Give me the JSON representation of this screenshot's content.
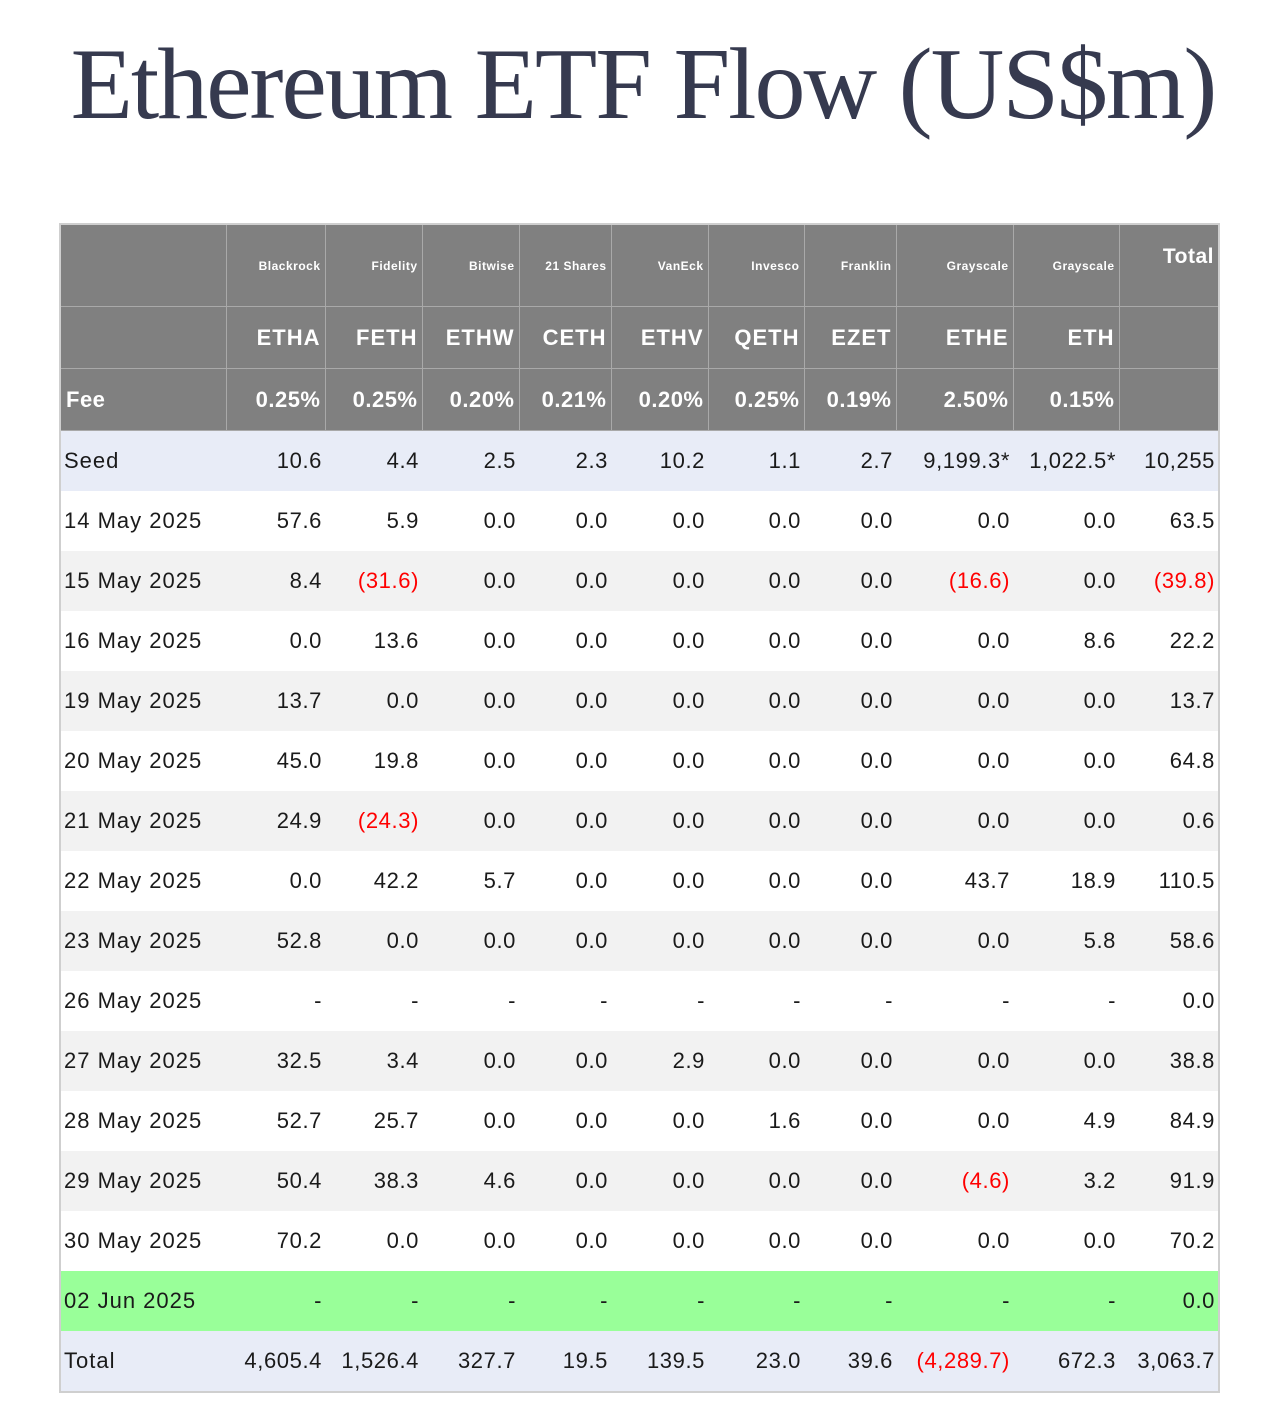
{
  "title": "Ethereum ETF Flow (US$m)",
  "colors": {
    "title": "#363a4f",
    "header_bg": "#808080",
    "seed_total_bg": "#e8ecf7",
    "stripe_bg": "#f2f2f2",
    "highlight_bg": "#99ff99",
    "negative_text": "#ff0000"
  },
  "header": {
    "providers": [
      "",
      "Blackrock",
      "Fidelity",
      "Bitwise",
      "21 Shares",
      "VanEck",
      "Invesco",
      "Franklin",
      "Grayscale",
      "Grayscale",
      "Total"
    ],
    "tickers": [
      "",
      "ETHA",
      "FETH",
      "ETHW",
      "CETH",
      "ETHV",
      "QETH",
      "EZET",
      "ETHE",
      "ETH",
      ""
    ],
    "fees": [
      "Fee",
      "0.25%",
      "0.25%",
      "0.20%",
      "0.21%",
      "0.20%",
      "0.25%",
      "0.19%",
      "2.50%",
      "0.15%",
      ""
    ]
  },
  "rows": [
    {
      "label": "Seed",
      "style": "seed",
      "values": [
        "10.6",
        "4.4",
        "2.5",
        "2.3",
        "10.2",
        "1.1",
        "2.7",
        "9,199.3*",
        "1,022.5*",
        "10,255"
      ]
    },
    {
      "label": "14 May 2025",
      "style": "white",
      "values": [
        "57.6",
        "5.9",
        "0.0",
        "0.0",
        "0.0",
        "0.0",
        "0.0",
        "0.0",
        "0.0",
        "63.5"
      ]
    },
    {
      "label": "15 May 2025",
      "style": "grey",
      "values": [
        "8.4",
        "(31.6)",
        "0.0",
        "0.0",
        "0.0",
        "0.0",
        "0.0",
        "(16.6)",
        "0.0",
        "(39.8)"
      ]
    },
    {
      "label": "16 May 2025",
      "style": "white",
      "values": [
        "0.0",
        "13.6",
        "0.0",
        "0.0",
        "0.0",
        "0.0",
        "0.0",
        "0.0",
        "8.6",
        "22.2"
      ]
    },
    {
      "label": "19 May 2025",
      "style": "grey",
      "values": [
        "13.7",
        "0.0",
        "0.0",
        "0.0",
        "0.0",
        "0.0",
        "0.0",
        "0.0",
        "0.0",
        "13.7"
      ]
    },
    {
      "label": "20 May 2025",
      "style": "white",
      "values": [
        "45.0",
        "19.8",
        "0.0",
        "0.0",
        "0.0",
        "0.0",
        "0.0",
        "0.0",
        "0.0",
        "64.8"
      ]
    },
    {
      "label": "21 May 2025",
      "style": "grey",
      "values": [
        "24.9",
        "(24.3)",
        "0.0",
        "0.0",
        "0.0",
        "0.0",
        "0.0",
        "0.0",
        "0.0",
        "0.6"
      ]
    },
    {
      "label": "22 May 2025",
      "style": "white",
      "values": [
        "0.0",
        "42.2",
        "5.7",
        "0.0",
        "0.0",
        "0.0",
        "0.0",
        "43.7",
        "18.9",
        "110.5"
      ]
    },
    {
      "label": "23 May 2025",
      "style": "grey",
      "values": [
        "52.8",
        "0.0",
        "0.0",
        "0.0",
        "0.0",
        "0.0",
        "0.0",
        "0.0",
        "5.8",
        "58.6"
      ]
    },
    {
      "label": "26 May 2025",
      "style": "white",
      "values": [
        "-",
        "-",
        "-",
        "-",
        "-",
        "-",
        "-",
        "-",
        "-",
        "0.0"
      ]
    },
    {
      "label": "27 May 2025",
      "style": "grey",
      "values": [
        "32.5",
        "3.4",
        "0.0",
        "0.0",
        "2.9",
        "0.0",
        "0.0",
        "0.0",
        "0.0",
        "38.8"
      ]
    },
    {
      "label": "28 May 2025",
      "style": "white",
      "values": [
        "52.7",
        "25.7",
        "0.0",
        "0.0",
        "0.0",
        "1.6",
        "0.0",
        "0.0",
        "4.9",
        "84.9"
      ]
    },
    {
      "label": "29 May 2025",
      "style": "grey",
      "values": [
        "50.4",
        "38.3",
        "4.6",
        "0.0",
        "0.0",
        "0.0",
        "0.0",
        "(4.6)",
        "3.2",
        "91.9"
      ]
    },
    {
      "label": "30 May 2025",
      "style": "white",
      "values": [
        "70.2",
        "0.0",
        "0.0",
        "0.0",
        "0.0",
        "0.0",
        "0.0",
        "0.0",
        "0.0",
        "70.2"
      ]
    },
    {
      "label": "02 Jun 2025",
      "style": "green",
      "values": [
        "-",
        "-",
        "-",
        "-",
        "-",
        "-",
        "-",
        "-",
        "-",
        "0.0"
      ]
    },
    {
      "label": "Total",
      "style": "total",
      "values": [
        "4,605.4",
        "1,526.4",
        "327.7",
        "19.5",
        "139.5",
        "23.0",
        "39.6",
        "(4,289.7)",
        "672.3",
        "3,063.7"
      ]
    }
  ]
}
